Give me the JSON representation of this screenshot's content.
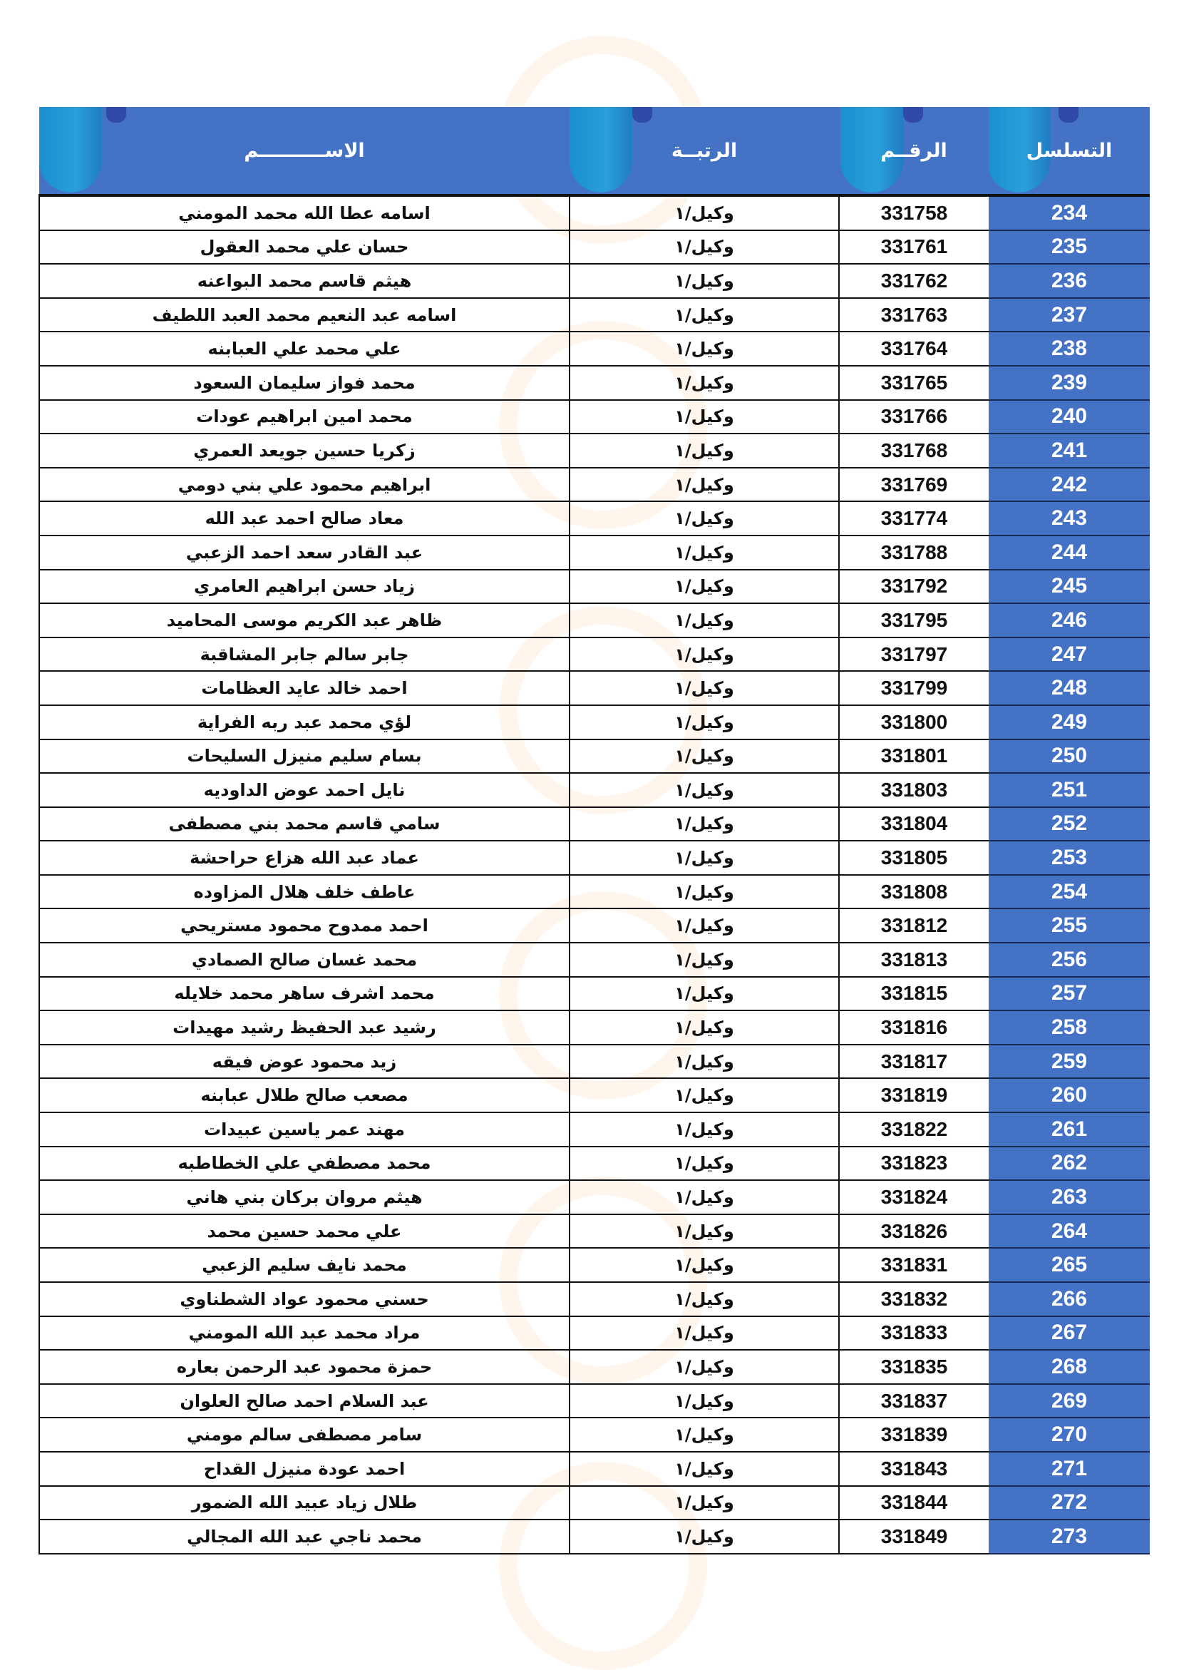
{
  "header": {
    "serial": "التسلسل",
    "number": "الرقــم",
    "rank": "الرتبــة",
    "name": "الاســــــــــم"
  },
  "colors": {
    "header_bg": "#4472c4",
    "serial_bg": "#4472c4",
    "pill": "#2a9fd9"
  },
  "rows": [
    {
      "serial": "234",
      "number": "331758",
      "rank": "وكيل/١",
      "name": "اسامه عطا الله محمد المومني"
    },
    {
      "serial": "235",
      "number": "331761",
      "rank": "وكيل/١",
      "name": "حسان علي محمد العقول"
    },
    {
      "serial": "236",
      "number": "331762",
      "rank": "وكيل/١",
      "name": "هيثم قاسم محمد البواعنه"
    },
    {
      "serial": "237",
      "number": "331763",
      "rank": "وكيل/١",
      "name": "اسامه عبد النعيم محمد العبد اللطيف"
    },
    {
      "serial": "238",
      "number": "331764",
      "rank": "وكيل/١",
      "name": "علي محمد علي العبابنه"
    },
    {
      "serial": "239",
      "number": "331765",
      "rank": "وكيل/١",
      "name": "محمد فواز سليمان السعود"
    },
    {
      "serial": "240",
      "number": "331766",
      "rank": "وكيل/١",
      "name": "محمد امين ابراهيم عودات"
    },
    {
      "serial": "241",
      "number": "331768",
      "rank": "وكيل/١",
      "name": "زكريا حسين جويعد العمري"
    },
    {
      "serial": "242",
      "number": "331769",
      "rank": "وكيل/١",
      "name": "ابراهيم محمود علي بني دومي"
    },
    {
      "serial": "243",
      "number": "331774",
      "rank": "وكيل/١",
      "name": "معاد صالح احمد عبد الله"
    },
    {
      "serial": "244",
      "number": "331788",
      "rank": "وكيل/١",
      "name": "عبد القادر سعد احمد الزعبي"
    },
    {
      "serial": "245",
      "number": "331792",
      "rank": "وكيل/١",
      "name": "زياد حسن ابراهيم العامري"
    },
    {
      "serial": "246",
      "number": "331795",
      "rank": "وكيل/١",
      "name": "ظاهر عبد الكريم موسى المحاميد"
    },
    {
      "serial": "247",
      "number": "331797",
      "rank": "وكيل/١",
      "name": "جابر سالم جابر المشاقبة"
    },
    {
      "serial": "248",
      "number": "331799",
      "rank": "وكيل/١",
      "name": "احمد خالد عايد العظامات"
    },
    {
      "serial": "249",
      "number": "331800",
      "rank": "وكيل/١",
      "name": "لؤي محمد عبد ربه الفراية"
    },
    {
      "serial": "250",
      "number": "331801",
      "rank": "وكيل/١",
      "name": "بسام سليم منيزل السليحات"
    },
    {
      "serial": "251",
      "number": "331803",
      "rank": "وكيل/١",
      "name": "نايل احمد عوض الداوديه"
    },
    {
      "serial": "252",
      "number": "331804",
      "rank": "وكيل/١",
      "name": "سامي قاسم محمد بني مصطفى"
    },
    {
      "serial": "253",
      "number": "331805",
      "rank": "وكيل/١",
      "name": "عماد عبد الله هزاع حراحشة"
    },
    {
      "serial": "254",
      "number": "331808",
      "rank": "وكيل/١",
      "name": "عاطف خلف هلال المزاوده"
    },
    {
      "serial": "255",
      "number": "331812",
      "rank": "وكيل/١",
      "name": "احمد ممدوح محمود مستريحي"
    },
    {
      "serial": "256",
      "number": "331813",
      "rank": "وكيل/١",
      "name": "محمد غسان صالح الصمادي"
    },
    {
      "serial": "257",
      "number": "331815",
      "rank": "وكيل/١",
      "name": "محمد اشرف ساهر محمد خلايله"
    },
    {
      "serial": "258",
      "number": "331816",
      "rank": "وكيل/١",
      "name": "رشيد عبد الحفيظ رشيد مهيدات"
    },
    {
      "serial": "259",
      "number": "331817",
      "rank": "وكيل/١",
      "name": "زيد محمود عوض فيقه"
    },
    {
      "serial": "260",
      "number": "331819",
      "rank": "وكيل/١",
      "name": "مصعب صالح طلال عبابنه"
    },
    {
      "serial": "261",
      "number": "331822",
      "rank": "وكيل/١",
      "name": "مهند عمر ياسين عبيدات"
    },
    {
      "serial": "262",
      "number": "331823",
      "rank": "وكيل/١",
      "name": "محمد مصطفي علي الخطاطبه"
    },
    {
      "serial": "263",
      "number": "331824",
      "rank": "وكيل/١",
      "name": "هيثم مروان بركان بني هاني"
    },
    {
      "serial": "264",
      "number": "331826",
      "rank": "وكيل/١",
      "name": "علي محمد حسين محمد"
    },
    {
      "serial": "265",
      "number": "331831",
      "rank": "وكيل/١",
      "name": "محمد نايف سليم الزعبي"
    },
    {
      "serial": "266",
      "number": "331832",
      "rank": "وكيل/١",
      "name": "حسني محمود عواد الشطناوي"
    },
    {
      "serial": "267",
      "number": "331833",
      "rank": "وكيل/١",
      "name": "مراد محمد عبد الله المومني"
    },
    {
      "serial": "268",
      "number": "331835",
      "rank": "وكيل/١",
      "name": "حمزة محمود عبد الرحمن بعاره"
    },
    {
      "serial": "269",
      "number": "331837",
      "rank": "وكيل/١",
      "name": "عبد السلام احمد صالح العلوان"
    },
    {
      "serial": "270",
      "number": "331839",
      "rank": "وكيل/١",
      "name": "سامر مصطفى سالم مومني"
    },
    {
      "serial": "271",
      "number": "331843",
      "rank": "وكيل/١",
      "name": "احمد عودة منيزل القداح"
    },
    {
      "serial": "272",
      "number": "331844",
      "rank": "وكيل/١",
      "name": "طلال زياد عبيد الله الضمور"
    },
    {
      "serial": "273",
      "number": "331849",
      "rank": "وكيل/١",
      "name": "محمد ناجي عبد الله المجالي"
    }
  ]
}
